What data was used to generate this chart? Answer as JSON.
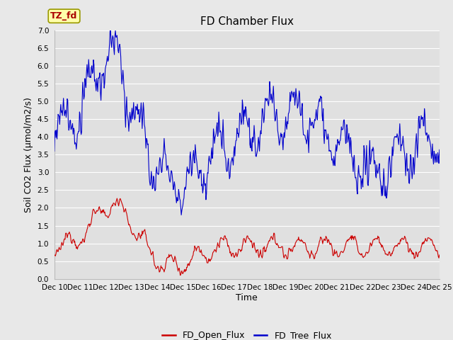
{
  "title": "FD Chamber Flux",
  "xlabel": "Time",
  "ylabel": "Soil CO2 Flux (μmol/m2/s)",
  "ylim": [
    0.0,
    7.0
  ],
  "x_start_day": 10,
  "x_end_day": 25,
  "xtick_days": [
    10,
    11,
    12,
    13,
    14,
    15,
    16,
    17,
    18,
    19,
    20,
    21,
    22,
    23,
    24,
    25
  ],
  "open_flux_color": "#cc0000",
  "tree_flux_color": "#0000cc",
  "figure_facecolor": "#e8e8e8",
  "axes_facecolor": "#e0e0e0",
  "grid_color": "#ffffff",
  "label_box_text": "TZ_fd",
  "label_box_facecolor": "#ffffaa",
  "label_box_edgecolor": "#999900",
  "label_box_textcolor": "#aa0000",
  "legend_labels": [
    "FD_Open_Flux",
    "FD_Tree_Flux"
  ],
  "n_points": 720,
  "title_fontsize": 11,
  "axis_label_fontsize": 9,
  "tick_fontsize": 7.5,
  "legend_fontsize": 9
}
